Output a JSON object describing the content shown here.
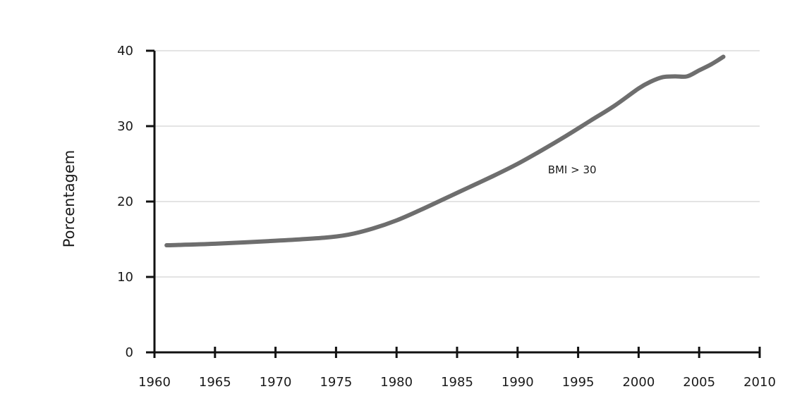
{
  "chart_data": {
    "type": "line",
    "title": "",
    "xlabel": "",
    "ylabel": "Porcentagem",
    "xlim": [
      1960,
      2010
    ],
    "ylim": [
      0,
      40
    ],
    "xticks": [
      1960,
      1965,
      1970,
      1975,
      1980,
      1985,
      1990,
      1995,
      2000,
      2005,
      2010
    ],
    "yticks": [
      0,
      10,
      20,
      30,
      40
    ],
    "grid": "horizontal",
    "series": [
      {
        "name": "BMI > 30",
        "color": "#6e6e6e",
        "x": [
          1961,
          1965,
          1970,
          1974,
          1976,
          1978,
          1980,
          1982,
          1984,
          1986,
          1988,
          1990,
          1992,
          1994,
          1996,
          1998,
          2000,
          2001,
          2002,
          2003,
          2004,
          2005,
          2006,
          2007
        ],
        "y": [
          14.2,
          14.4,
          14.8,
          15.2,
          15.6,
          16.4,
          17.5,
          18.9,
          20.4,
          21.9,
          23.4,
          25.0,
          26.8,
          28.7,
          30.7,
          32.7,
          35.0,
          35.9,
          36.5,
          36.6,
          36.6,
          37.4,
          38.2,
          39.2
        ]
      }
    ],
    "annotations": [
      {
        "text": "BMI > 30",
        "x": 1992.5,
        "y": 24.2
      }
    ]
  }
}
